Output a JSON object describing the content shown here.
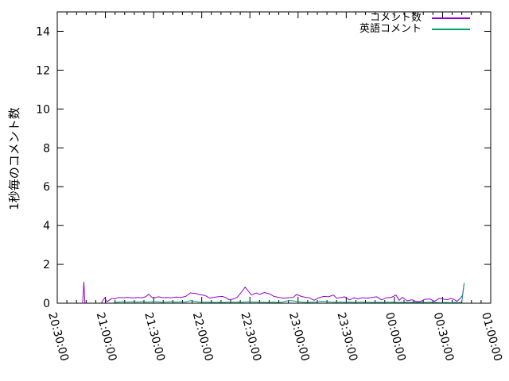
{
  "chart_data": {
    "type": "line",
    "title": "",
    "xlabel": "",
    "ylabel": "1秒毎のコメント数",
    "background": "#ffffff",
    "axis_color": "#000000",
    "grid": false,
    "legend_position": "top-right-inside",
    "x_unit": "minutes since 20:30:00",
    "x_domain": [
      0,
      270
    ],
    "x_major_every_min": 30,
    "x_minor_every_min": 6,
    "x_tick_labels": [
      "20:30:00",
      "21:00:00",
      "21:30:00",
      "22:00:00",
      "22:30:00",
      "23:00:00",
      "23:30:00",
      "00:00:00",
      "00:30:00",
      "01:00:00"
    ],
    "y_domain": [
      0,
      15
    ],
    "y_major_ticks": [
      0,
      2,
      4,
      6,
      8,
      10,
      12,
      14
    ],
    "series": [
      {
        "id": "comment-count",
        "name": "コメント数",
        "color": "#9400d3",
        "points": [
          [
            15.8,
            0
          ],
          [
            16.6,
            1.1
          ],
          [
            17.2,
            0
          ],
          null,
          [
            27.5,
            0.02
          ],
          [
            29.5,
            0.27
          ],
          [
            31,
            0.08
          ],
          [
            34,
            0.25
          ],
          [
            36,
            0.22
          ],
          [
            38,
            0.3
          ],
          [
            41,
            0.28
          ],
          [
            44,
            0.3
          ],
          [
            47,
            0.27
          ],
          [
            50,
            0.3
          ],
          [
            53,
            0.28
          ],
          [
            55,
            0.33
          ],
          [
            57,
            0.46
          ],
          [
            59,
            0.3
          ],
          [
            61,
            0.28
          ],
          [
            63,
            0.33
          ],
          [
            66,
            0.28
          ],
          [
            68,
            0.3
          ],
          [
            71,
            0.28
          ],
          [
            74,
            0.32
          ],
          [
            77,
            0.3
          ],
          [
            80,
            0.35
          ],
          [
            83,
            0.53
          ],
          [
            86,
            0.5
          ],
          [
            89,
            0.44
          ],
          [
            92,
            0.4
          ],
          [
            95,
            0.26
          ],
          [
            97,
            0.3
          ],
          [
            100,
            0.33
          ],
          [
            103,
            0.35
          ],
          [
            105,
            0.28
          ],
          [
            107,
            0.18
          ],
          [
            109,
            0.2
          ],
          [
            112,
            0.3
          ],
          [
            114,
            0.49
          ],
          [
            117,
            0.83
          ],
          [
            119,
            0.62
          ],
          [
            121,
            0.42
          ],
          [
            124,
            0.53
          ],
          [
            126,
            0.45
          ],
          [
            129,
            0.55
          ],
          [
            132,
            0.49
          ],
          [
            135,
            0.35
          ],
          [
            138,
            0.3
          ],
          [
            141,
            0.26
          ],
          [
            144,
            0.28
          ],
          [
            147,
            0.3
          ],
          [
            149,
            0.45
          ],
          [
            152,
            0.35
          ],
          [
            155,
            0.3
          ],
          [
            157,
            0.28
          ],
          [
            160,
            0.15
          ],
          [
            163,
            0.28
          ],
          [
            166,
            0.35
          ],
          [
            169,
            0.33
          ],
          [
            172,
            0.42
          ],
          [
            174,
            0.26
          ],
          [
            177,
            0.3
          ],
          [
            179,
            0.33
          ],
          [
            182,
            0.17
          ],
          [
            185,
            0.28
          ],
          [
            187,
            0.22
          ],
          [
            190,
            0.28
          ],
          [
            193,
            0.26
          ],
          [
            196,
            0.3
          ],
          [
            199,
            0.33
          ],
          [
            202,
            0.17
          ],
          [
            205,
            0.28
          ],
          [
            208,
            0.3
          ],
          [
            211,
            0.42
          ],
          [
            213,
            0.15
          ],
          [
            215,
            0.3
          ],
          [
            218,
            0.12
          ],
          [
            221,
            0.18
          ],
          [
            223,
            0.1
          ],
          [
            226,
            0.08
          ],
          [
            229,
            0.2
          ],
          [
            232,
            0.22
          ],
          [
            235,
            0.1
          ],
          [
            238,
            0.25
          ],
          [
            240,
            0.22
          ],
          [
            243,
            0.18
          ],
          [
            245,
            0.25
          ],
          [
            247,
            0.2
          ],
          [
            249,
            0.1
          ],
          [
            251,
            0.25
          ],
          [
            252.4,
            0.4
          ],
          [
            253.3,
            0.95
          ]
        ]
      },
      {
        "id": "english-comments",
        "name": "英語コメント",
        "color": "#009e73",
        "points": [
          [
            35,
            0.02
          ],
          [
            38,
            0.06
          ],
          [
            41,
            0.08
          ],
          [
            44,
            0.06
          ],
          [
            47,
            0.08
          ],
          [
            50,
            0.06
          ],
          [
            53,
            0.08
          ],
          [
            56,
            0.06
          ],
          [
            59,
            0.07
          ],
          [
            62,
            0.08
          ],
          [
            65,
            0.05
          ],
          [
            68,
            0.06
          ],
          [
            71,
            0.08
          ],
          [
            74,
            0.06
          ],
          [
            77,
            0.07
          ],
          [
            80,
            0.06
          ],
          [
            83,
            0.13
          ],
          [
            86,
            0.1
          ],
          [
            89,
            0.06
          ],
          [
            92,
            0.05
          ],
          [
            95,
            0.06
          ],
          [
            98,
            0.04
          ],
          [
            101,
            0.05
          ],
          [
            104,
            0.04
          ],
          [
            107,
            0.05
          ],
          [
            110,
            0.05
          ],
          [
            113,
            0.06
          ],
          [
            116,
            0.05
          ],
          [
            119,
            0.08
          ],
          [
            122,
            0.06
          ],
          [
            125,
            0.06
          ],
          [
            128,
            0.05
          ],
          [
            131,
            0.04
          ],
          [
            134,
            0.05
          ],
          [
            137,
            0.04
          ],
          [
            140,
            0.05
          ],
          [
            143,
            0.12
          ],
          [
            146,
            0.13
          ],
          [
            149,
            0.1
          ],
          [
            152,
            0.06
          ],
          [
            155,
            0.04
          ],
          [
            158,
            0.05
          ],
          [
            161,
            0.06
          ],
          [
            164,
            0.1
          ],
          [
            167,
            0.09
          ],
          [
            170,
            0.06
          ],
          [
            173,
            0.05
          ],
          [
            176,
            0.06
          ],
          [
            179,
            0.05
          ],
          [
            182,
            0.06
          ],
          [
            185,
            0.04
          ],
          [
            188,
            0.05
          ],
          [
            191,
            0.06
          ],
          [
            194,
            0.05
          ],
          [
            197,
            0.04
          ],
          [
            200,
            0.05
          ],
          [
            203,
            0.04
          ],
          [
            206,
            0.05
          ],
          [
            209,
            0.06
          ],
          [
            212,
            0.04
          ],
          [
            215,
            0.05
          ],
          [
            218,
            0.04
          ],
          [
            221,
            0.05
          ],
          [
            224,
            0.04
          ],
          [
            227,
            0.05
          ],
          [
            230,
            0.04
          ],
          [
            233,
            0.05
          ],
          [
            236,
            0.04
          ],
          [
            239,
            0.03
          ],
          [
            242,
            0.04
          ],
          [
            245,
            0.03
          ],
          [
            248,
            0.04
          ],
          [
            250,
            0.03
          ],
          [
            252,
            0.08
          ],
          [
            253.5,
            1.05
          ]
        ]
      }
    ]
  }
}
